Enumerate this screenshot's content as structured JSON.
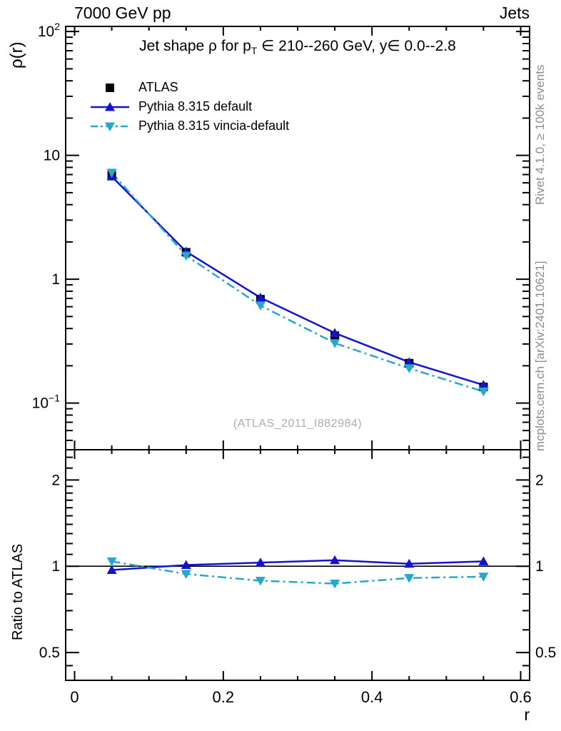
{
  "header": {
    "left": "7000 GeV pp",
    "right": "Jets"
  },
  "title": {
    "part1": "Jet shape ρ for p",
    "sub": "T",
    "part2": " ∈ 210--260 GeV, y∈ 0.0--2.8"
  },
  "axes": {
    "x_label": "r",
    "y_label_main": "ρ(r)",
    "y_label_ratio": "Ratio to ATLAS"
  },
  "side_notes": {
    "top": "Rivet 4.1.0, ≥ 100k events",
    "bottom": "mcplots.cern.ch [arXiv:2401.10621]"
  },
  "watermark": "(ATLAS_2011_I882984)",
  "colors": {
    "atlas": "#000000",
    "pythia_default": "#1313d2",
    "pythia_vincia": "#28a7c9",
    "frame": "#000000",
    "ref_line": "#000000"
  },
  "legend": [
    {
      "label": "ATLAS",
      "marker": "square",
      "line": "none",
      "color": "#000000"
    },
    {
      "label": "Pythia 8.315 default",
      "marker": "triangle-up",
      "line": "solid",
      "color": "#1313d2"
    },
    {
      "label": "Pythia 8.315 vincia-default",
      "marker": "triangle-down",
      "line": "dashdot",
      "color": "#28a7c9"
    }
  ],
  "chart_data": [
    {
      "type": "line",
      "title": "Jet shape ρ for p_T ∈ 210--260 GeV, y∈ 0.0--2.8",
      "xlabel": "r",
      "ylabel": "ρ(r)",
      "ylog": true,
      "xlim": [
        0,
        0.6
      ],
      "ylim": [
        0.042,
        110
      ],
      "grid": false,
      "legend_position": "top-left",
      "x": [
        0.05,
        0.15,
        0.25,
        0.35,
        0.45,
        0.55
      ],
      "series": [
        {
          "name": "ATLAS",
          "color": "#000000",
          "marker": "square",
          "linestyle": "none",
          "values": [
            6.95,
            1.65,
            0.69,
            0.35,
            0.21,
            0.135
          ]
        },
        {
          "name": "Pythia 8.315 default",
          "color": "#1313d2",
          "marker": "triangle-up",
          "linestyle": "solid",
          "values": [
            6.75,
            1.67,
            0.71,
            0.368,
            0.214,
            0.14
          ]
        },
        {
          "name": "Pythia 8.315 vincia-default",
          "color": "#28a7c9",
          "marker": "triangle-down",
          "linestyle": "dashdot",
          "values": [
            7.25,
            1.55,
            0.614,
            0.305,
            0.191,
            0.124
          ]
        }
      ],
      "yticks": [
        {
          "v": 100,
          "base": "10",
          "exp": "2"
        },
        {
          "v": 10,
          "base": "10",
          "exp": ""
        },
        {
          "v": 1,
          "base": "1",
          "exp": ""
        },
        {
          "v": 0.1,
          "base": "10",
          "exp": "−1"
        }
      ],
      "xticks": [
        {
          "v": 0,
          "label": "0"
        },
        {
          "v": 0.2,
          "label": "0.2"
        },
        {
          "v": 0.4,
          "label": "0.4"
        },
        {
          "v": 0.6,
          "label": "0.6"
        }
      ]
    },
    {
      "type": "line",
      "title": "",
      "xlabel": "r",
      "ylabel": "Ratio to ATLAS",
      "ylog": true,
      "xlim": [
        0,
        0.6
      ],
      "ylim": [
        0.4,
        2.55
      ],
      "grid": false,
      "ref_line": 1,
      "x": [
        0.05,
        0.15,
        0.25,
        0.35,
        0.45,
        0.55
      ],
      "series": [
        {
          "name": "Pythia 8.315 default",
          "color": "#1313d2",
          "marker": "triangle-up",
          "linestyle": "solid",
          "values": [
            0.97,
            1.01,
            1.03,
            1.05,
            1.02,
            1.04
          ]
        },
        {
          "name": "Pythia 8.315 vincia-default",
          "color": "#28a7c9",
          "marker": "triangle-down",
          "linestyle": "dashdot",
          "values": [
            1.04,
            0.94,
            0.89,
            0.87,
            0.91,
            0.92
          ]
        }
      ],
      "yticks": [
        {
          "v": 2,
          "base": "2",
          "exp": ""
        },
        {
          "v": 1,
          "base": "1",
          "exp": ""
        },
        {
          "v": 0.5,
          "base": "0.5",
          "exp": ""
        }
      ],
      "xticks": [
        {
          "v": 0,
          "label": "0"
        },
        {
          "v": 0.2,
          "label": "0.2"
        },
        {
          "v": 0.4,
          "label": "0.4"
        },
        {
          "v": 0.6,
          "label": "0.6"
        }
      ]
    }
  ]
}
